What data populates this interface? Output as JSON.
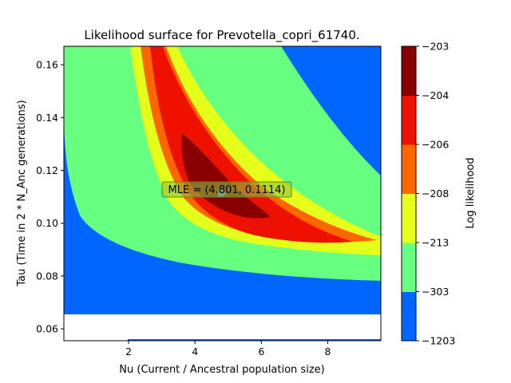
{
  "chart_data": {
    "type": "contour",
    "title": "Likelihood surface for Prevotella_copri_61740.",
    "xlabel": "Nu (Current / Ancestral population size)",
    "ylabel": "Tau (Time in 2 * N_Anc generations)",
    "xlim": [
      0.05,
      9.6
    ],
    "ylim": [
      0.0555,
      0.167
    ],
    "xticks": [
      "2",
      "4",
      "6",
      "8"
    ],
    "yticks": [
      "0.06",
      "0.08",
      "0.10",
      "0.12",
      "0.14",
      "0.16"
    ],
    "colorbar": {
      "label": "Log likelihood",
      "levels": [
        "-1203",
        "-303",
        "-213",
        "-208",
        "-206",
        "-204",
        "-203"
      ],
      "colors": [
        "#0066ff",
        "#66ff80",
        "#e6ff1a",
        "#ff6600",
        "#ee1100",
        "#880000"
      ]
    },
    "mle": {
      "nu": 4.801,
      "tau": 0.1114,
      "label": "MLE = (4.801, 0.1114)"
    },
    "blank_region_below_tau": 0.0655,
    "grid": false
  }
}
